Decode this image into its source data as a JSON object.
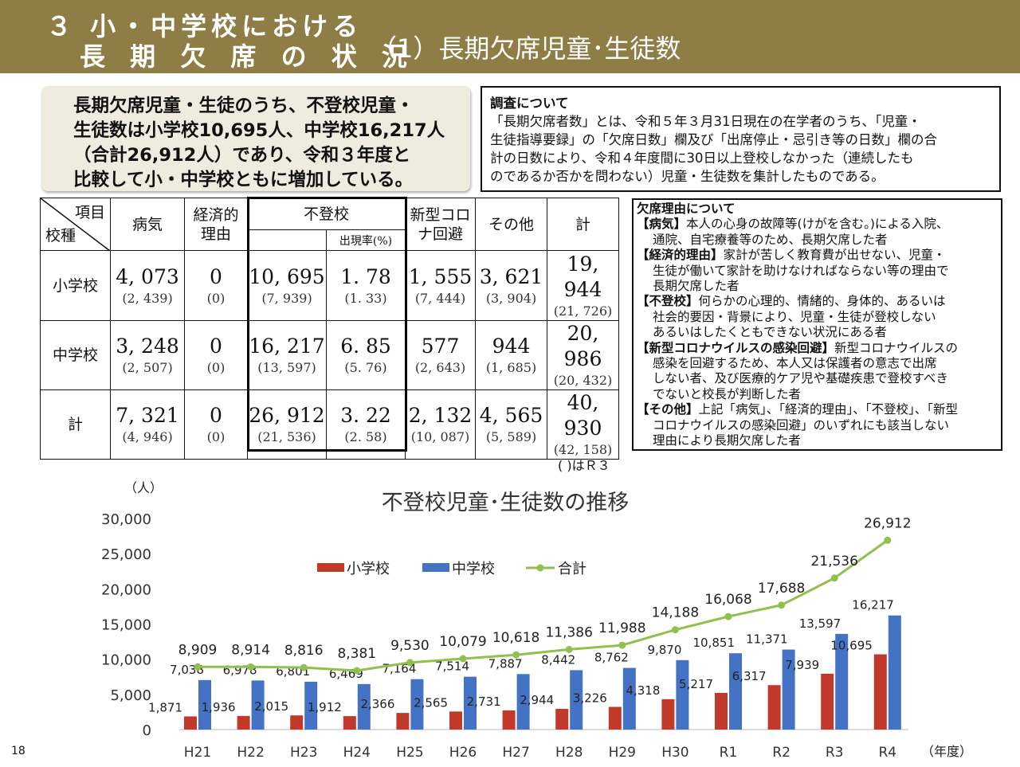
{
  "header": {
    "line1": "３ 小・中学校における",
    "line2": "長 期 欠 席 の 状 況",
    "subtitle": "（1）長期欠席児童･生徒数"
  },
  "summary": {
    "lines": [
      "長期欠席児童・生徒のうち、不登校児童・",
      "生徒数は小学校10,695人、中学校16,217人",
      "（合計26,912人）であり、令和３年度と",
      "比較して小・中学校ともに増加している。"
    ]
  },
  "survey": {
    "title": "調査について",
    "lines": [
      "「長期欠席者数」とは、令和５年３月31日現在の在学者のうち、「児童・",
      "生徒指導要録」の「欠席日数」欄及び「出席停止・忌引き等の日数」欄の合",
      "計の日数により、令和４年度間に30日以上登校しなかった（連続したも",
      "のであるか否かを問わない）児童・生徒数を集計したものである。"
    ]
  },
  "table": {
    "corner_item": "項目",
    "corner_type": "校種",
    "col_illness": "病気",
    "col_econ": "経済的\n理由",
    "col_futoko": "不登校",
    "col_rate": "出現率(%)",
    "col_covid": "新型コロ\nナ回避",
    "col_other": "その他",
    "col_total": "計",
    "rows": [
      {
        "label": "小学校",
        "illness": "4, 073",
        "illness_p": "(2, 439)",
        "econ": "0",
        "econ_p": "(0)",
        "futoko": "10, 695",
        "futoko_p": "(7, 939)",
        "rate": "1. 78",
        "rate_p": "(1. 33)",
        "covid": "1, 555",
        "covid_p": "(7, 444)",
        "other": "3, 621",
        "other_p": "(3, 904)",
        "total": "19, 944",
        "total_p": "(21, 726)"
      },
      {
        "label": "中学校",
        "illness": "3, 248",
        "illness_p": "(2, 507)",
        "econ": "0",
        "econ_p": "(0)",
        "futoko": "16, 217",
        "futoko_p": "(13, 597)",
        "rate": "6. 85",
        "rate_p": "(5. 76)",
        "covid": "577",
        "covid_p": "(2, 643)",
        "other": "944",
        "other_p": "(1, 685)",
        "total": "20, 986",
        "total_p": "(20, 432)"
      },
      {
        "label": "計",
        "illness": "7, 321",
        "illness_p": "(4, 946)",
        "econ": "0",
        "econ_p": "(0)",
        "futoko": "26, 912",
        "futoko_p": "(21, 536)",
        "rate": "3. 22",
        "rate_p": "(2. 58)",
        "covid": "2, 132",
        "covid_p": "(10, 087)",
        "other": "4, 565",
        "other_p": "(5, 589)",
        "total": "40, 930",
        "total_p": "(42, 158)"
      }
    ],
    "note": "( )はＲ３"
  },
  "reasons": {
    "title": "欠席理由について",
    "items": [
      {
        "head": "【病気】",
        "lines": [
          "本人の心身の故障等(けがを含む。)による入院、",
          "通院、自宅療養等のため、長期欠席した者"
        ]
      },
      {
        "head": "【経済的理由】",
        "lines": [
          "家計が苦しく教育費が出せない、児童・",
          "生徒が働いて家計を助けなければならない等の理由で",
          "長期欠席した者"
        ]
      },
      {
        "head": "【不登校】",
        "lines": [
          "何らかの心理的、情緒的、身体的、あるいは",
          "社会的要因・背景により、児童・生徒が登校しない",
          "あるいはしたくともできない状況にある者"
        ]
      },
      {
        "head": "【新型コロナウイルスの感染回避】",
        "lines": [
          "新型コロナウイルスの",
          "感染を回避するため、本人又は保護者の意志で出席",
          "しない者、及び医療的ケア児や基礎疾患で登校すべき",
          "でないと校長が判断した者"
        ]
      },
      {
        "head": "【その他】",
        "lines": [
          "上記「病気」、「経済的理由」、「不登校」、「新型",
          "コロナウイルスの感染回避」のいずれにも該当しない",
          "理由により長期欠席した者"
        ]
      }
    ]
  },
  "chart_data": {
    "type": "bar",
    "title": "不登校児童･生徒数の推移",
    "ylabel": "（人）",
    "xlabel": "（年度）",
    "ylim": [
      0,
      30000
    ],
    "yticks": [
      "0",
      "5,000",
      "10,000",
      "15,000",
      "20,000",
      "25,000",
      "30,000"
    ],
    "categories": [
      "H21",
      "H22",
      "H23",
      "H24",
      "H25",
      "H26",
      "H27",
      "H28",
      "H29",
      "H30",
      "R1",
      "R2",
      "R3",
      "R4"
    ],
    "series": [
      {
        "name": "小学校",
        "type": "bar",
        "color": "#c0392b",
        "values": [
          1871,
          1936,
          2015,
          1912,
          2366,
          2565,
          2731,
          2944,
          3226,
          4318,
          5217,
          6317,
          7939,
          10695
        ],
        "labels": [
          "1,871",
          "1,936",
          "2,015",
          "1,912",
          "2,366",
          "2,565",
          "2,731",
          "2,944",
          "3,226",
          "4,318",
          "5,217",
          "6,317",
          "7,939",
          "10,695"
        ]
      },
      {
        "name": "中学校",
        "type": "bar",
        "color": "#4472c4",
        "values": [
          7038,
          6978,
          6801,
          6469,
          7164,
          7514,
          7887,
          8442,
          8762,
          9870,
          10851,
          11371,
          13597,
          16217
        ],
        "labels": [
          "7,038",
          "6,978",
          "6,801",
          "6,469",
          "7,164",
          "7,514",
          "7,887",
          "8,442",
          "8,762",
          "9,870",
          "10,851",
          "11,371",
          "13,597",
          "16,217"
        ]
      },
      {
        "name": "合計",
        "type": "line",
        "color": "#92c04f",
        "values": [
          8909,
          8914,
          8816,
          8381,
          9530,
          10079,
          10618,
          11386,
          11988,
          14188,
          16068,
          17688,
          21536,
          26912
        ],
        "labels": [
          "8,909",
          "8,914",
          "8,816",
          "8,381",
          "9,530",
          "10,079",
          "10,618",
          "11,386",
          "11,988",
          "14,188",
          "16,068",
          "17,688",
          "21,536",
          "26,912"
        ]
      }
    ],
    "grid": false,
    "legend": "top-left"
  },
  "page_number": "18"
}
